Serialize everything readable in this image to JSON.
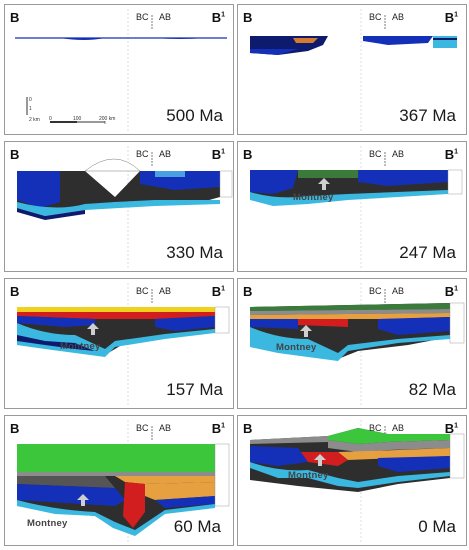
{
  "section_start_label": "B",
  "section_end_label": "B",
  "section_end_superscript": "1",
  "province_left": "BC",
  "province_right": "AB",
  "formation_label": "Montney",
  "scale_bar": {
    "vertical_zero": "0",
    "vertical_one": "1",
    "vertical_unit": "2 km",
    "horizontal_zero": "0",
    "horizontal_mid": "100",
    "horizontal_end": "200 km"
  },
  "panels": [
    {
      "age": "500 Ma"
    },
    {
      "age": "367 Ma"
    },
    {
      "age": "330 Ma"
    },
    {
      "age": "247 Ma"
    },
    {
      "age": "157 Ma"
    },
    {
      "age": "82 Ma"
    },
    {
      "age": "60 Ma"
    },
    {
      "age": "0 Ma"
    }
  ],
  "colors": {
    "deep_blue": "#1530b8",
    "dark_navy": "#0d1a6e",
    "cyan": "#3ab8e0",
    "gray": "#555555",
    "dark_gray": "#2e2e2e",
    "green": "#3cc63c",
    "red": "#d21e1e",
    "orange": "#e6a040",
    "yellow": "#f0d21e",
    "teal": "#1fa8a0"
  }
}
